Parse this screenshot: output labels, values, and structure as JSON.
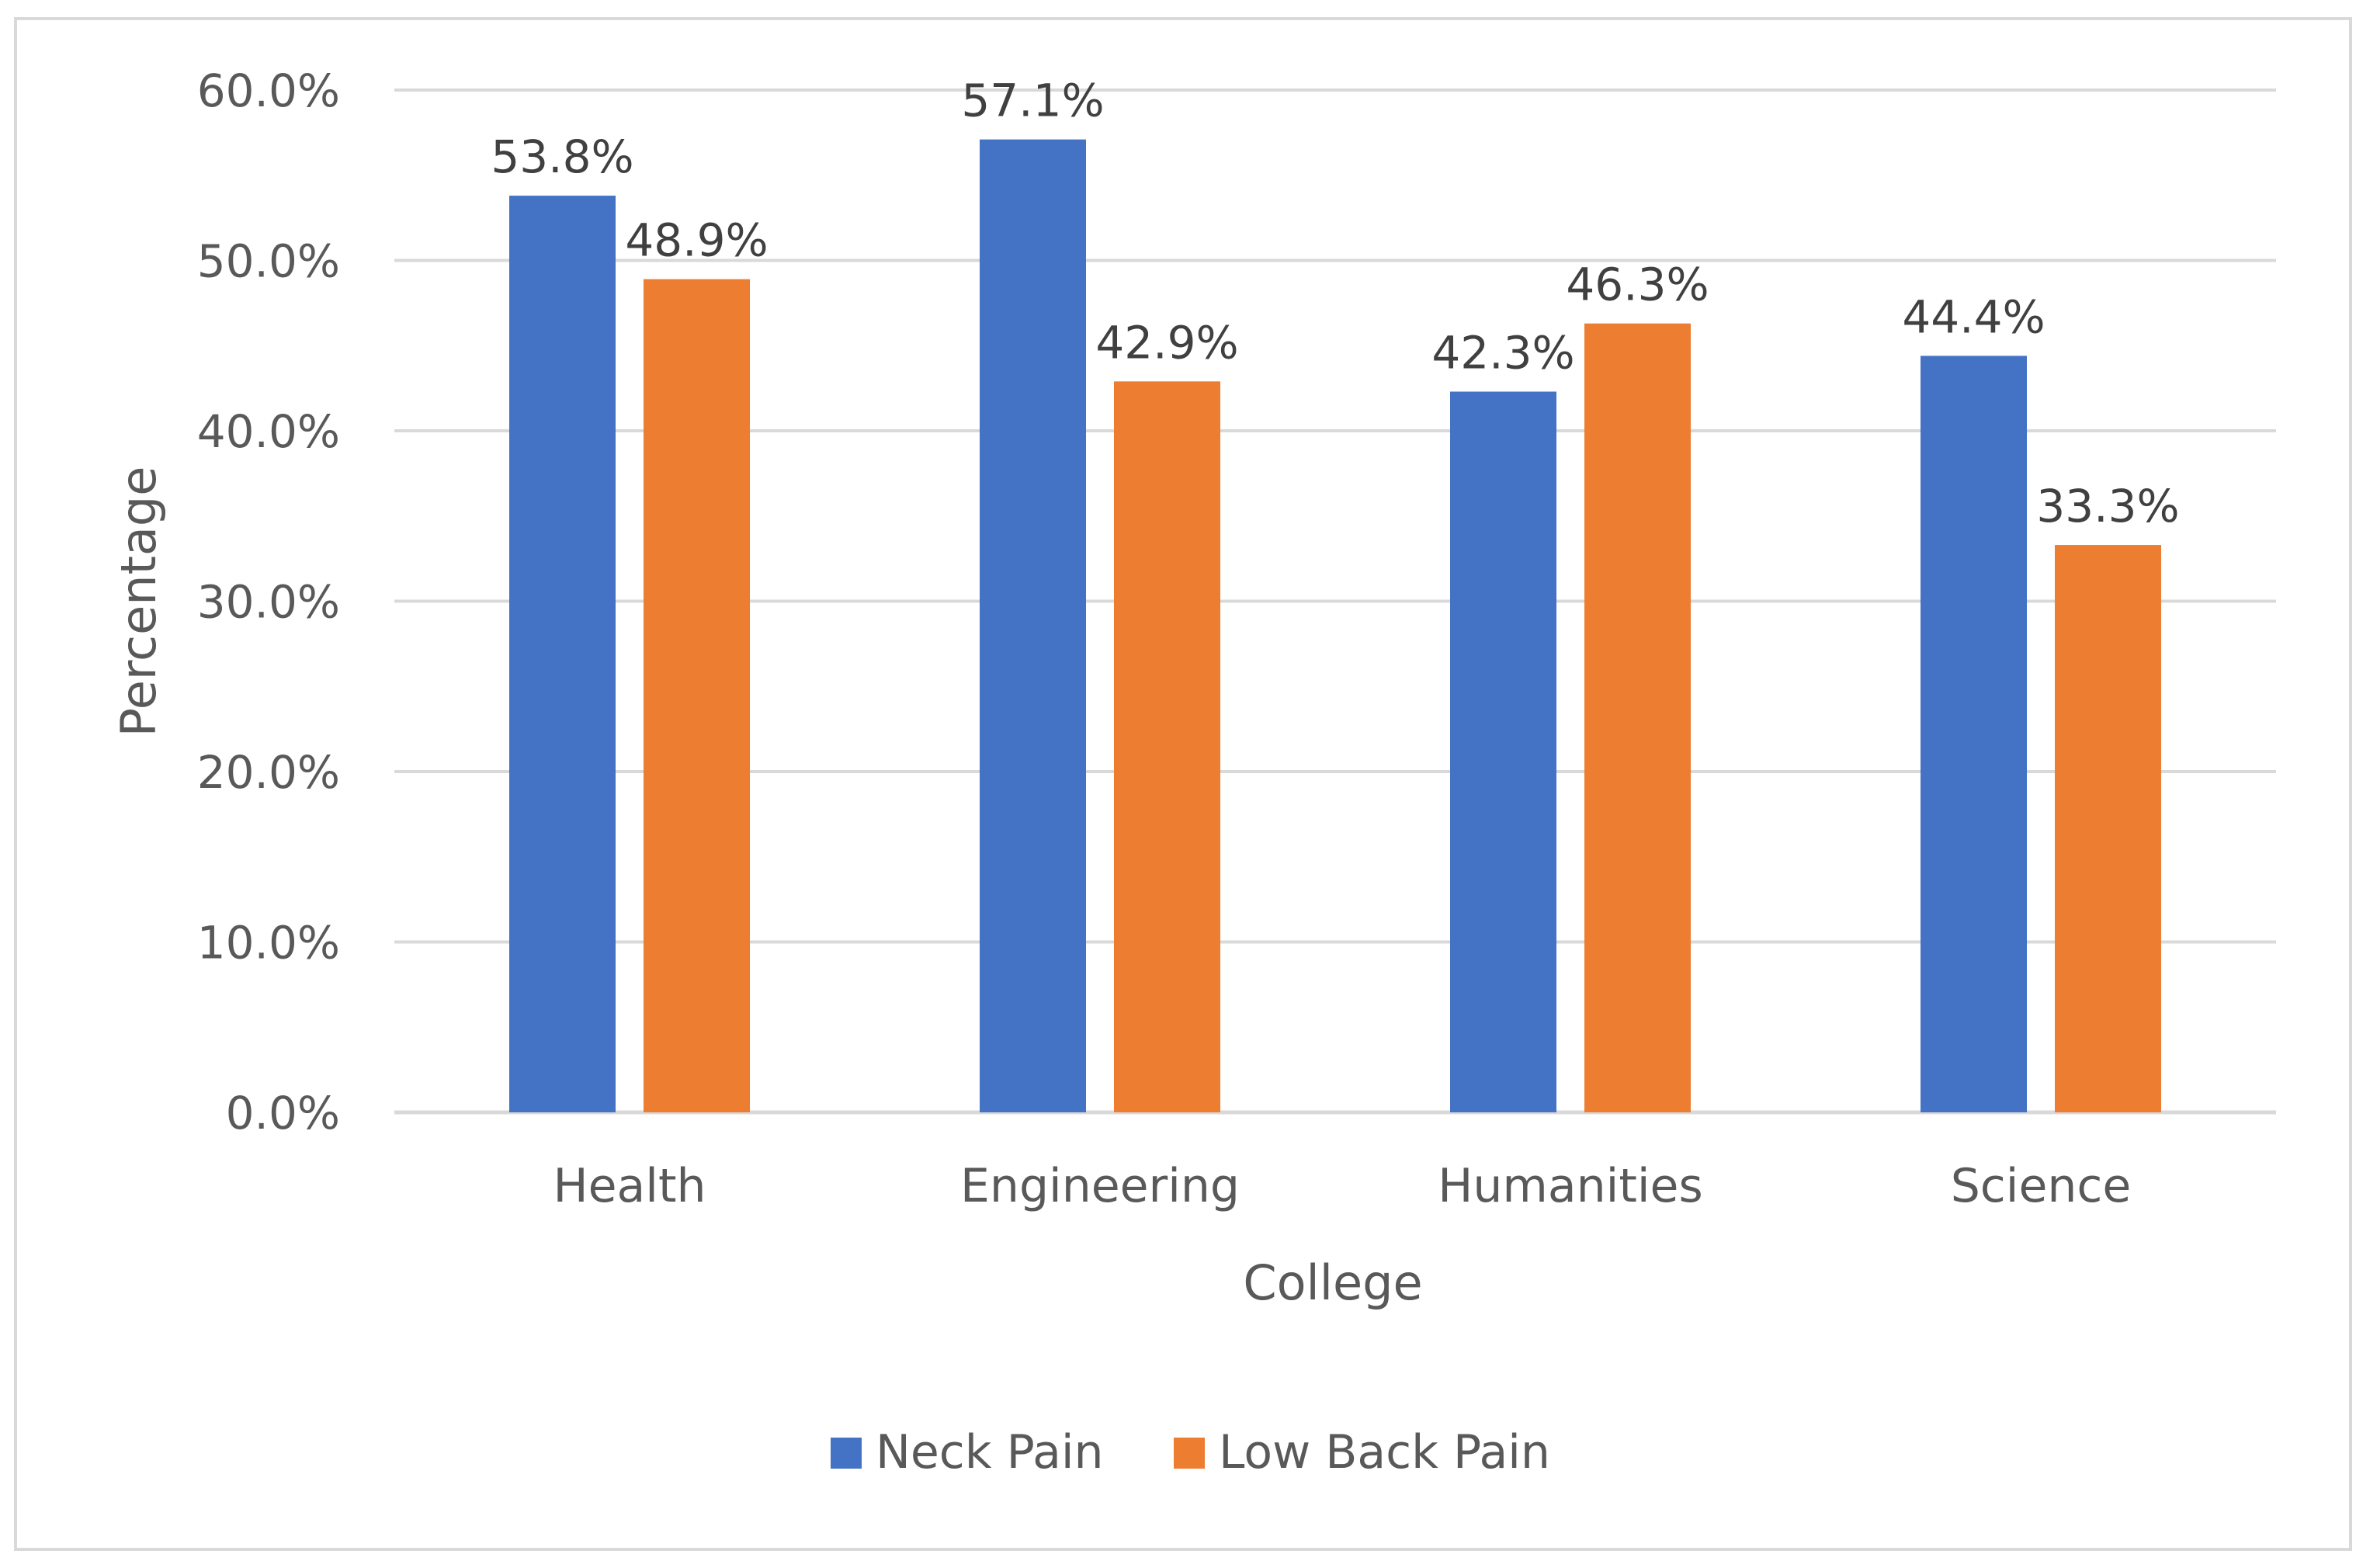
{
  "chart_data": {
    "type": "bar",
    "title": "",
    "xlabel": "College",
    "ylabel": "Percentage",
    "categories": [
      "Health",
      "Engineering",
      "Humanities",
      "Science"
    ],
    "series": [
      {
        "name": "Neck Pain",
        "color": "#4472C4",
        "values": [
          53.8,
          57.1,
          42.3,
          44.4
        ],
        "labels": [
          "53.8%",
          "57.1%",
          "42.3%",
          "44.4%"
        ]
      },
      {
        "name": "Low Back Pain",
        "color": "#ED7D31",
        "values": [
          48.9,
          42.9,
          46.3,
          33.3
        ],
        "labels": [
          "48.9%",
          "42.9%",
          "46.3%",
          "33.3%"
        ]
      }
    ],
    "ylim": [
      0,
      60
    ],
    "yticks": [
      0,
      10,
      20,
      30,
      40,
      50,
      60
    ],
    "ytick_labels": [
      "0.0%",
      "10.0%",
      "20.0%",
      "30.0%",
      "40.0%",
      "50.0%",
      "60.0%"
    ],
    "grid": true,
    "legend": "bottom-center"
  },
  "colors": {
    "gridline": "#D9D9D9",
    "text": "#595959",
    "label_text": "#404040",
    "frame": "#D9D9D9"
  }
}
